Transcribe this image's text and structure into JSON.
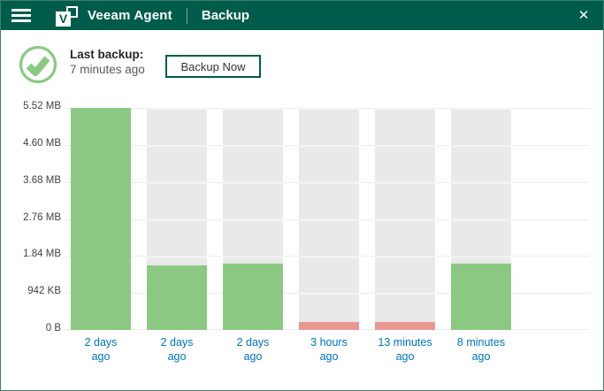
{
  "header": {
    "app_title": "Veeam Agent",
    "section_title": "Backup",
    "close_glyph": "✕"
  },
  "icons": {
    "menu": "hamburger-menu-icon",
    "logo": "veeam-logo-icon",
    "logo_letter": "V",
    "close": "close-icon",
    "status": "success-check-icon"
  },
  "status": {
    "last_backup_label": "Last backup:",
    "last_backup_value": "7 minutes ago",
    "backup_now_label": "Backup Now"
  },
  "colors": {
    "header_bg": "#005C4A",
    "window_border": "#3D7E6E",
    "bar_success": "#8BC983",
    "bar_error": "#E99793",
    "bar_track": "#E9E9E9",
    "gridline": "#ECECEC",
    "x_label_blue": "#0072BC",
    "y_label_gray": "#404040",
    "status_icon_green": "#8BC983"
  },
  "chart_data": {
    "type": "bar",
    "title": "",
    "xlabel": "",
    "ylabel": "",
    "unit": "MB",
    "categories": [
      "2 days ago",
      "2 days ago",
      "2 days ago",
      "3 hours ago",
      "13 minutes ago",
      "8 minutes ago"
    ],
    "category_lines": [
      [
        "2 days",
        "ago"
      ],
      [
        "2 days",
        "ago"
      ],
      [
        "2 days",
        "ago"
      ],
      [
        "3 hours",
        "ago"
      ],
      [
        "13 minutes",
        "ago"
      ],
      [
        "8 minutes",
        "ago"
      ]
    ],
    "values_mb": [
      5.52,
      1.61,
      1.65,
      0.2,
      0.2,
      1.65
    ],
    "statuses": [
      "success",
      "success",
      "success",
      "error",
      "error",
      "success"
    ],
    "y_tick_labels": [
      "5.52 MB",
      "4.60 MB",
      "3.68 MB",
      "2.76 MB",
      "1.84 MB",
      "942 KB",
      "0 B"
    ],
    "ylim": [
      0,
      5.52
    ],
    "grid": true,
    "legend": false,
    "bar_track_full_height": true
  }
}
